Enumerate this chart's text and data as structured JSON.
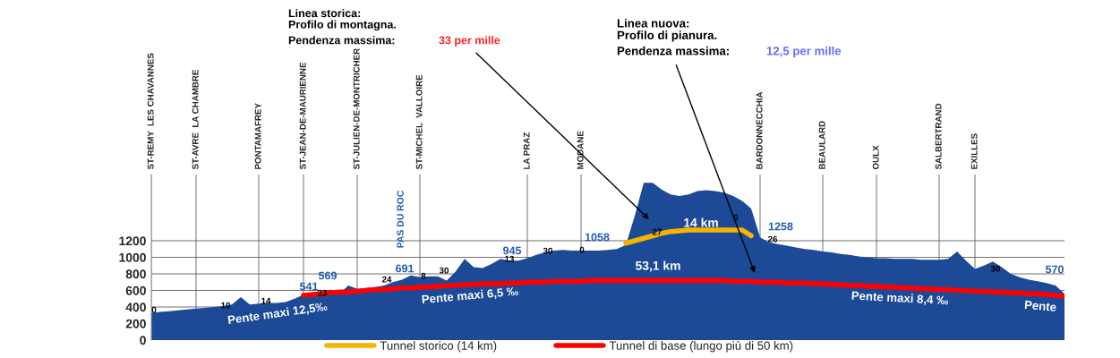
{
  "chart_data": {
    "type": "area",
    "categories": [
      "ST-REMY  LES CHAVANNES",
      null,
      null,
      null,
      null,
      "ST-AVRE  LA CHAMBRE",
      null,
      null,
      null,
      null,
      null,
      null,
      "PONTAMAFREY",
      null,
      null,
      null,
      null,
      "ST-JEAN-DE-MAURIENNE",
      null,
      null,
      null,
      null,
      null,
      "ST-JULIEN-DE-MONTRICHER",
      null,
      null,
      null,
      null,
      null,
      null,
      "ST-MICHEL  VALLOIRE",
      null,
      null,
      null,
      null,
      null,
      null,
      null,
      null,
      null,
      null,
      null,
      "LA PRAZ",
      null,
      null,
      null,
      null,
      null,
      "MODANE",
      null,
      null,
      null,
      null,
      null,
      null,
      null,
      null,
      null,
      null,
      null,
      null,
      null,
      null,
      null,
      null,
      null,
      null,
      null,
      "BARDONNECCHIA",
      null,
      null,
      null,
      null,
      null,
      null,
      "BEAULARD",
      null,
      null,
      null,
      null,
      null,
      "OULX",
      null,
      null,
      null,
      null,
      null,
      null,
      "SALBERTRAND",
      null,
      null,
      null,
      "EXILLES",
      null,
      null,
      null,
      null,
      null,
      null,
      null,
      null,
      null,
      null
    ],
    "series": [
      {
        "color": "#1c4a97",
        "values": [
          330,
          340,
          350,
          360,
          370,
          380,
          390,
          400,
          410,
          430,
          520,
          430,
          440,
          450,
          450,
          460,
          500,
          550,
          560,
          570,
          610,
          560,
          660,
          620,
          630,
          640,
          660,
          700,
          730,
          780,
          760,
          770,
          770,
          720,
          830,
          980,
          880,
          870,
          920,
          980,
          960,
          960,
          990,
          1030,
          1060,
          1080,
          1090,
          1080,
          1080,
          1080,
          1080,
          1090,
          1100,
          1150,
          1500,
          1900,
          1900,
          1820,
          1760,
          1740,
          1760,
          1800,
          1810,
          1800,
          1780,
          1740,
          1680,
          1590,
          1240,
          1180,
          1160,
          1140,
          1120,
          1100,
          1090,
          1070,
          1060,
          1040,
          1030,
          1010,
          1000,
          990,
          990,
          980,
          980,
          980,
          970,
          970,
          970,
          980,
          1070,
          960,
          860,
          900,
          950,
          880,
          800,
          760,
          730,
          710,
          690,
          660,
          560
        ]
      },
      {
        "type": "line",
        "name": "Tunnel storico (14 km)",
        "color": "#f5b400",
        "values": [
          null,
          null,
          null,
          null,
          null,
          null,
          null,
          null,
          null,
          null,
          null,
          null,
          null,
          null,
          null,
          null,
          null,
          null,
          null,
          null,
          null,
          null,
          null,
          null,
          null,
          null,
          null,
          null,
          null,
          null,
          null,
          null,
          null,
          null,
          null,
          null,
          null,
          null,
          null,
          null,
          null,
          null,
          null,
          null,
          null,
          null,
          null,
          null,
          null,
          null,
          null,
          null,
          null,
          1170,
          1200,
          1230,
          1260,
          1290,
          1310,
          1320,
          1330,
          1330,
          1330,
          1330,
          1330,
          1330,
          1330,
          1260,
          null,
          null,
          null,
          null,
          null,
          null,
          null,
          null,
          null,
          null,
          null,
          null,
          null,
          null,
          null,
          null,
          null,
          null,
          null,
          null,
          null,
          null,
          null,
          null,
          null,
          null,
          null,
          null,
          null,
          null,
          null,
          null,
          null,
          null,
          null
        ]
      },
      {
        "type": "line",
        "name": "Tunnel di base (lungo più di 50 km)",
        "color": "#ff0000",
        "values": [
          null,
          null,
          null,
          null,
          null,
          null,
          null,
          null,
          null,
          null,
          null,
          null,
          null,
          null,
          null,
          null,
          null,
          540,
          550,
          560,
          570,
          580,
          580,
          590,
          600,
          610,
          610,
          620,
          630,
          630,
          640,
          640,
          650,
          660,
          660,
          670,
          670,
          680,
          680,
          680,
          690,
          690,
          700,
          700,
          700,
          710,
          710,
          710,
          710,
          720,
          720,
          720,
          720,
          720,
          720,
          720,
          720,
          720,
          720,
          720,
          720,
          720,
          720,
          720,
          720,
          710,
          710,
          710,
          700,
          700,
          700,
          690,
          690,
          690,
          680,
          680,
          670,
          670,
          660,
          660,
          650,
          650,
          640,
          640,
          630,
          630,
          620,
          620,
          610,
          610,
          600,
          600,
          590,
          590,
          580,
          580,
          570,
          570,
          560,
          560,
          550,
          540,
          530
        ]
      }
    ],
    "ylim": [
      0,
      2000
    ],
    "yticks": [
      0,
      200,
      400,
      600,
      800,
      1000,
      1200
    ],
    "grid": true,
    "legend": "bottom",
    "marker": "none",
    "line_style": "solid",
    "annotations": [
      "Linea storica:\nProfilo di montagna.",
      "Pendenza massima:",
      "33 per mille",
      "Linea nuova:\nProfilo di pianura.",
      "Pendenza massima:",
      "12,5 per mille",
      "PAS DU ROC",
      "541",
      "569",
      "691",
      "945",
      "1058",
      "1258",
      "570",
      "0",
      "10",
      "14",
      "23",
      "24",
      "8",
      "30",
      "13",
      "30",
      "0",
      "27",
      "6",
      "26",
      "30",
      "14 km",
      "53,1 km",
      "Pente maxi 12,5‰",
      "Pente maxi 6,5 ‰",
      "Pente maxi 8,4 ‰",
      "Pente"
    ]
  }
}
